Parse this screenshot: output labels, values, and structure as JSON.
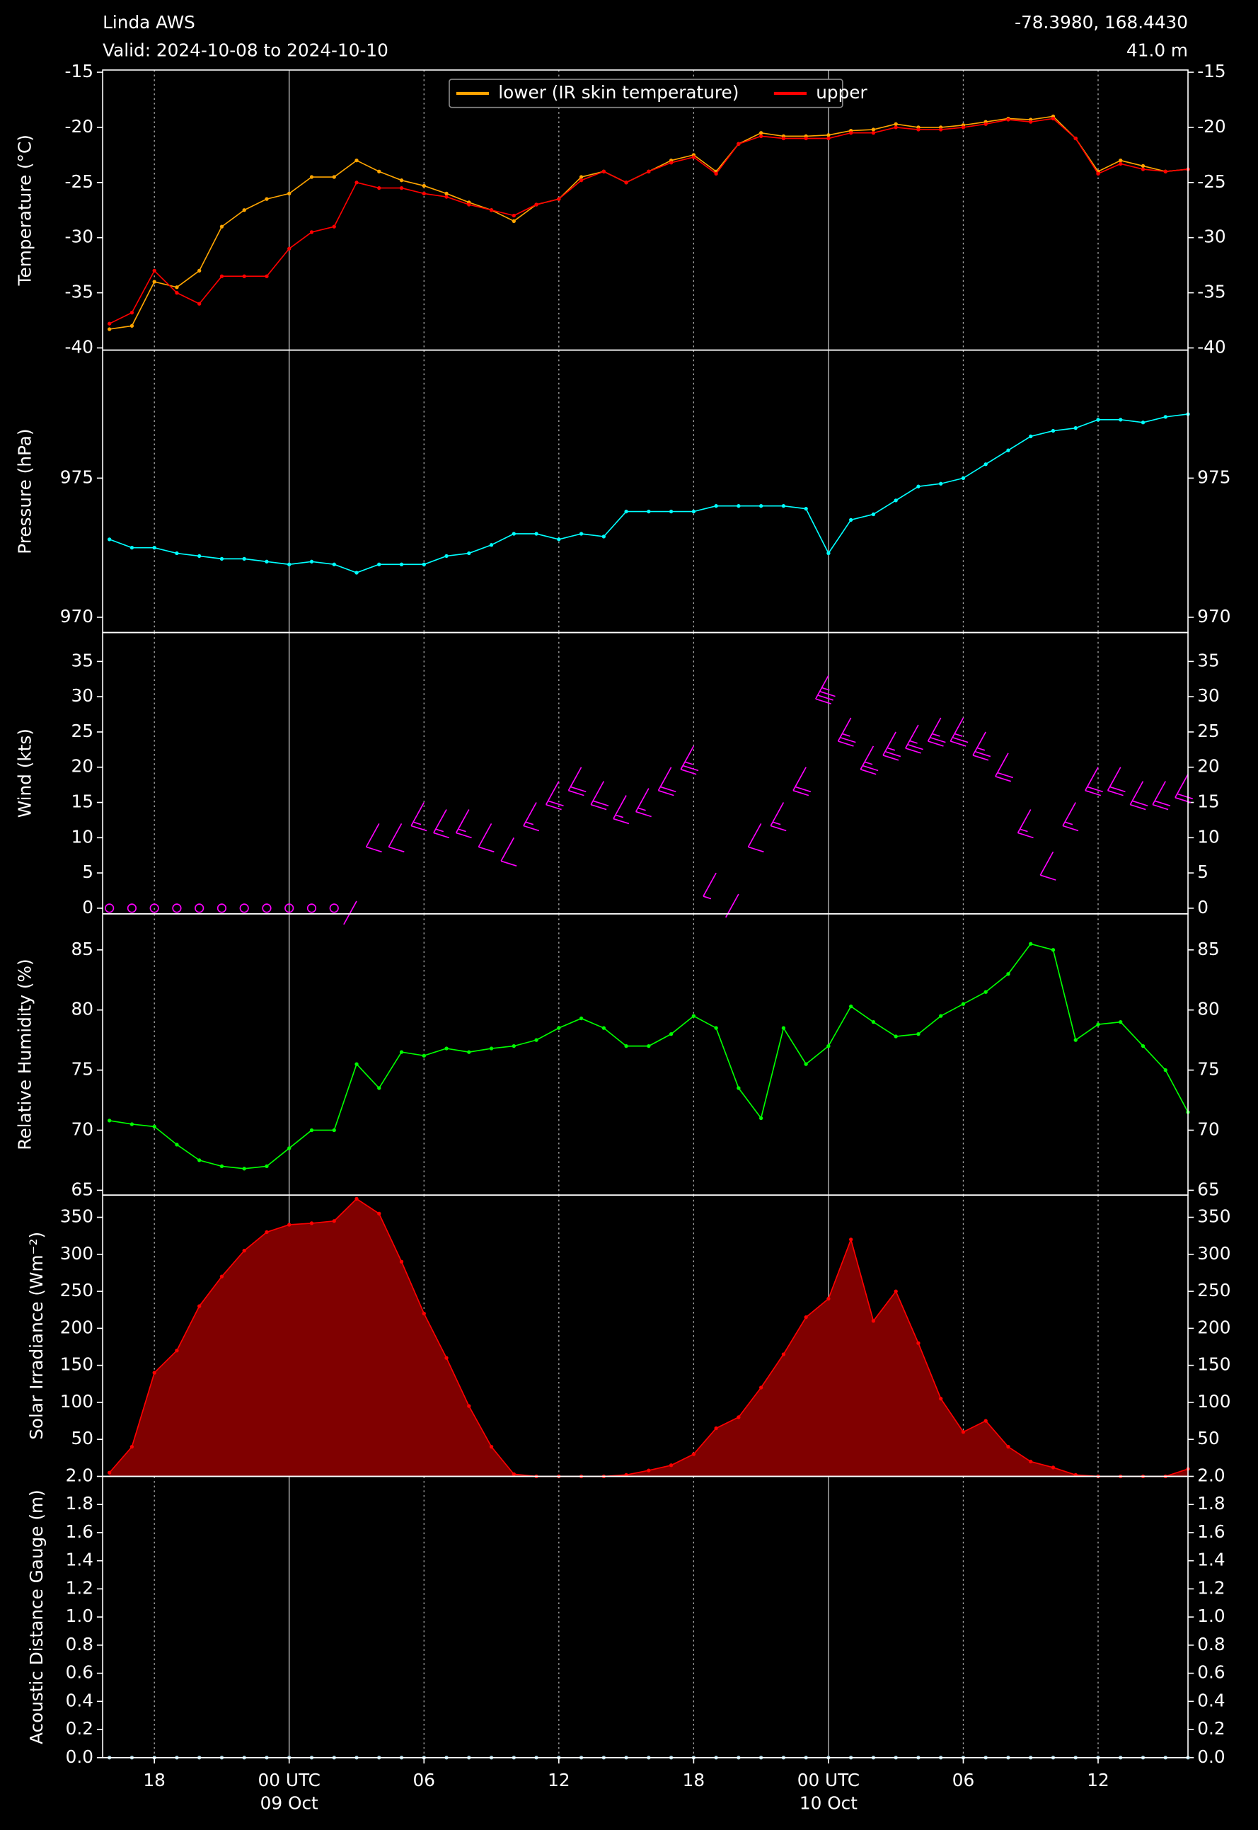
{
  "chart_data": [
    {
      "type": "line",
      "title": "Linda AWS",
      "subtitle": "Valid: 2024-10-08 to 2024-10-10",
      "location": "-78.3980, 168.4430",
      "elevation": "41.0 m",
      "ylabel": "Temperature (°C)",
      "legend": "upper center",
      "x": [
        16,
        17,
        18,
        19,
        20,
        21,
        22,
        23,
        24,
        25,
        26,
        27,
        28,
        29,
        30,
        31,
        32,
        33,
        34,
        35,
        36,
        37,
        38,
        39,
        40,
        41,
        42,
        43,
        44,
        45,
        46,
        47,
        48,
        49,
        50,
        51,
        52,
        53,
        54,
        55,
        56,
        57,
        58,
        59,
        60,
        61,
        62,
        63,
        64
      ],
      "xlim": [
        15.7,
        64
      ],
      "ylim": [
        -40.2,
        -14.8
      ],
      "yticks": [
        -40,
        -35,
        -30,
        -25,
        -20,
        -15
      ],
      "series": [
        {
          "name": "lower (IR skin temperature)",
          "color": "#ffa500",
          "values": [
            -38.3,
            -38,
            -34,
            -34.5,
            -33,
            -29,
            -27.5,
            -26.5,
            -26,
            -24.5,
            -24.5,
            -23,
            -24,
            -24.8,
            -25.3,
            -26,
            -26.8,
            -27.5,
            -28.5,
            -27,
            -26.5,
            -24.5,
            -24,
            -25,
            -24,
            -23,
            -22.5,
            -24,
            -21.5,
            -20.5,
            -20.8,
            -20.8,
            -20.7,
            -20.3,
            -20.2,
            -19.7,
            -20,
            -20,
            -19.8,
            -19.5,
            -19.2,
            -19.3,
            -19,
            -21,
            -24,
            -23,
            -23.5,
            -24,
            -23.8
          ]
        },
        {
          "name": "upper",
          "color": "#ff0000",
          "values": [
            -37.8,
            -36.8,
            -33,
            -35,
            -36,
            -33.5,
            -33.5,
            -33.5,
            -31,
            -29.5,
            -29,
            -25,
            -25.5,
            -25.5,
            -26,
            -26.3,
            -27,
            -27.5,
            -28,
            -27,
            -26.5,
            -24.8,
            -24,
            -25,
            -24,
            -23.2,
            -22.7,
            -24.2,
            -21.5,
            -20.8,
            -21,
            -21,
            -21,
            -20.5,
            -20.5,
            -20,
            -20.2,
            -20.2,
            -20,
            -19.7,
            -19.3,
            -19.5,
            -19.2,
            -21,
            -24.2,
            -23.3,
            -23.8,
            -24,
            -23.8
          ]
        }
      ]
    },
    {
      "type": "line",
      "ylabel": "Pressure (hPa)",
      "x": [
        16,
        17,
        18,
        19,
        20,
        21,
        22,
        23,
        24,
        25,
        26,
        27,
        28,
        29,
        30,
        31,
        32,
        33,
        34,
        35,
        36,
        37,
        38,
        39,
        40,
        41,
        42,
        43,
        44,
        45,
        46,
        47,
        48,
        49,
        50,
        51,
        52,
        53,
        54,
        55,
        56,
        57,
        58,
        59,
        60,
        61,
        62,
        63,
        64
      ],
      "xlim": [
        15.7,
        64
      ],
      "ylim": [
        969.45,
        979.6
      ],
      "yticks": [
        970,
        975
      ],
      "series": [
        {
          "name": "pressure",
          "color": "#00ffff",
          "values": [
            972.8,
            972.5,
            972.5,
            972.3,
            972.2,
            972.1,
            972.1,
            972.0,
            971.9,
            972.0,
            971.9,
            971.6,
            971.9,
            971.9,
            971.9,
            972.2,
            972.3,
            972.6,
            973.0,
            973.0,
            972.8,
            973.0,
            972.9,
            973.8,
            973.8,
            973.8,
            973.8,
            974.0,
            974.0,
            974.0,
            974.0,
            973.9,
            972.3,
            973.5,
            973.7,
            974.2,
            974.7,
            974.8,
            975.0,
            975.5,
            976.0,
            976.5,
            976.7,
            976.8,
            977.1,
            977.1,
            977.0,
            977.2,
            977.3
          ]
        }
      ]
    },
    {
      "type": "barbs",
      "ylabel": "Wind (kts)",
      "x": [
        16,
        17,
        18,
        19,
        20,
        21,
        22,
        23,
        24,
        25,
        26,
        27,
        28,
        29,
        30,
        31,
        32,
        33,
        34,
        35,
        36,
        37,
        38,
        39,
        40,
        41,
        42,
        43,
        44,
        45,
        46,
        47,
        48,
        49,
        50,
        51,
        52,
        53,
        54,
        55,
        56,
        57,
        58,
        59,
        60,
        61,
        62,
        63,
        64
      ],
      "xlim": [
        15.7,
        64
      ],
      "ylim": [
        -0.8,
        39.1
      ],
      "yticks": [
        0,
        5,
        10,
        15,
        20,
        25,
        30,
        35
      ],
      "series": [
        {
          "name": "wind",
          "color": "#ff00ff",
          "values": [
            0,
            0,
            0,
            0,
            0,
            0,
            0,
            0,
            0,
            0,
            0,
            1,
            12,
            12,
            15,
            14,
            14,
            12,
            10,
            15,
            18,
            20,
            18,
            16,
            17,
            20,
            23,
            5,
            2,
            12,
            15,
            20,
            33,
            27,
            23,
            25,
            26,
            27,
            27,
            25,
            22,
            14,
            8,
            15,
            20,
            20,
            18,
            18,
            19
          ]
        }
      ]
    },
    {
      "type": "line",
      "ylabel": "Relative Humidity (%)",
      "x": [
        16,
        17,
        18,
        19,
        20,
        21,
        22,
        23,
        24,
        25,
        26,
        27,
        28,
        29,
        30,
        31,
        32,
        33,
        34,
        35,
        36,
        37,
        38,
        39,
        40,
        41,
        42,
        43,
        44,
        45,
        46,
        47,
        48,
        49,
        50,
        51,
        52,
        53,
        54,
        55,
        56,
        57,
        58,
        59,
        60,
        61,
        62,
        63,
        64
      ],
      "xlim": [
        15.7,
        64
      ],
      "ylim": [
        64.6,
        88.0
      ],
      "yticks": [
        65,
        70,
        75,
        80,
        85
      ],
      "series": [
        {
          "name": "humidity",
          "color": "#00ff00",
          "values": [
            70.8,
            70.5,
            70.3,
            68.8,
            67.5,
            67.0,
            66.8,
            67.0,
            68.5,
            70.0,
            70.0,
            75.5,
            73.5,
            76.5,
            76.2,
            76.8,
            76.5,
            76.8,
            77.0,
            77.5,
            78.5,
            79.3,
            78.5,
            77.0,
            77.0,
            78.0,
            79.5,
            78.5,
            73.5,
            71.0,
            78.5,
            75.5,
            77.0,
            80.3,
            79.0,
            77.8,
            78.0,
            79.5,
            80.5,
            81.5,
            83.0,
            85.5,
            85.0,
            77.5,
            78.8,
            79.0,
            77.0,
            75.0,
            71.5
          ]
        }
      ]
    },
    {
      "type": "area",
      "ylabel": "Solar Irradiance (Wm⁻²)",
      "x": [
        16,
        17,
        18,
        19,
        20,
        21,
        22,
        23,
        24,
        25,
        26,
        27,
        28,
        29,
        30,
        31,
        32,
        33,
        34,
        35,
        36,
        37,
        38,
        39,
        40,
        41,
        42,
        43,
        44,
        45,
        46,
        47,
        48,
        49,
        50,
        51,
        52,
        53,
        54,
        55,
        56,
        57,
        58,
        59,
        60,
        61,
        62,
        63,
        64
      ],
      "xlim": [
        15.7,
        64
      ],
      "ylim": [
        0,
        380
      ],
      "yticks": [
        50,
        100,
        150,
        200,
        250,
        300,
        350
      ],
      "series": [
        {
          "name": "irradiance",
          "color": "#ff0000",
          "fill": "#800000",
          "values": [
            5,
            40,
            140,
            170,
            230,
            270,
            305,
            330,
            340,
            342,
            345,
            375,
            355,
            290,
            220,
            160,
            95,
            40,
            3,
            0,
            0,
            0,
            0,
            2,
            8,
            15,
            30,
            65,
            80,
            120,
            165,
            215,
            240,
            320,
            210,
            250,
            180,
            105,
            60,
            75,
            40,
            20,
            12,
            2,
            0,
            0,
            0,
            0,
            10
          ]
        }
      ]
    },
    {
      "type": "line",
      "ylabel": "Acoustic Distance Gauge (m)",
      "x": [
        16,
        17,
        18,
        19,
        20,
        21,
        22,
        23,
        24,
        25,
        26,
        27,
        28,
        29,
        30,
        31,
        32,
        33,
        34,
        35,
        36,
        37,
        38,
        39,
        40,
        41,
        42,
        43,
        44,
        45,
        46,
        47,
        48,
        49,
        50,
        51,
        52,
        53,
        54,
        55,
        56,
        57,
        58,
        59,
        60,
        61,
        62,
        63,
        64
      ],
      "xlim": [
        15.7,
        64
      ],
      "ylim": [
        0,
        2.0
      ],
      "yticks": [
        {
          "value": 0,
          "label": "0.0"
        },
        0.2,
        0.4,
        0.6,
        0.8,
        {
          "value": 1,
          "label": "1.0"
        },
        1.2,
        1.4,
        1.6,
        1.8,
        {
          "value": 2,
          "label": "2.0"
        }
      ],
      "xticks": [
        {
          "value": 18,
          "label": "18"
        },
        {
          "value": 24,
          "label": "00 UTC",
          "date": "09 Oct"
        },
        {
          "value": 30,
          "label": "06"
        },
        {
          "value": 36,
          "label": "12"
        },
        {
          "value": 42,
          "label": "18"
        },
        {
          "value": 48,
          "label": "00 UTC",
          "date": "10 Oct"
        },
        {
          "value": 54,
          "label": "06"
        },
        {
          "value": 60,
          "label": "12"
        }
      ],
      "series": [
        {
          "name": "distance",
          "color": "#add8e6",
          "values": [
            0,
            0,
            0,
            0,
            0,
            0,
            0,
            0,
            0,
            0,
            0,
            0,
            0,
            0,
            0,
            0,
            0,
            0,
            0,
            0,
            0,
            0,
            0,
            0,
            0,
            0,
            0,
            0,
            0,
            0,
            0,
            0,
            0,
            0,
            0,
            0,
            0,
            0,
            0,
            0,
            0,
            0,
            0,
            0,
            0,
            0,
            0,
            0,
            0
          ]
        }
      ]
    }
  ]
}
